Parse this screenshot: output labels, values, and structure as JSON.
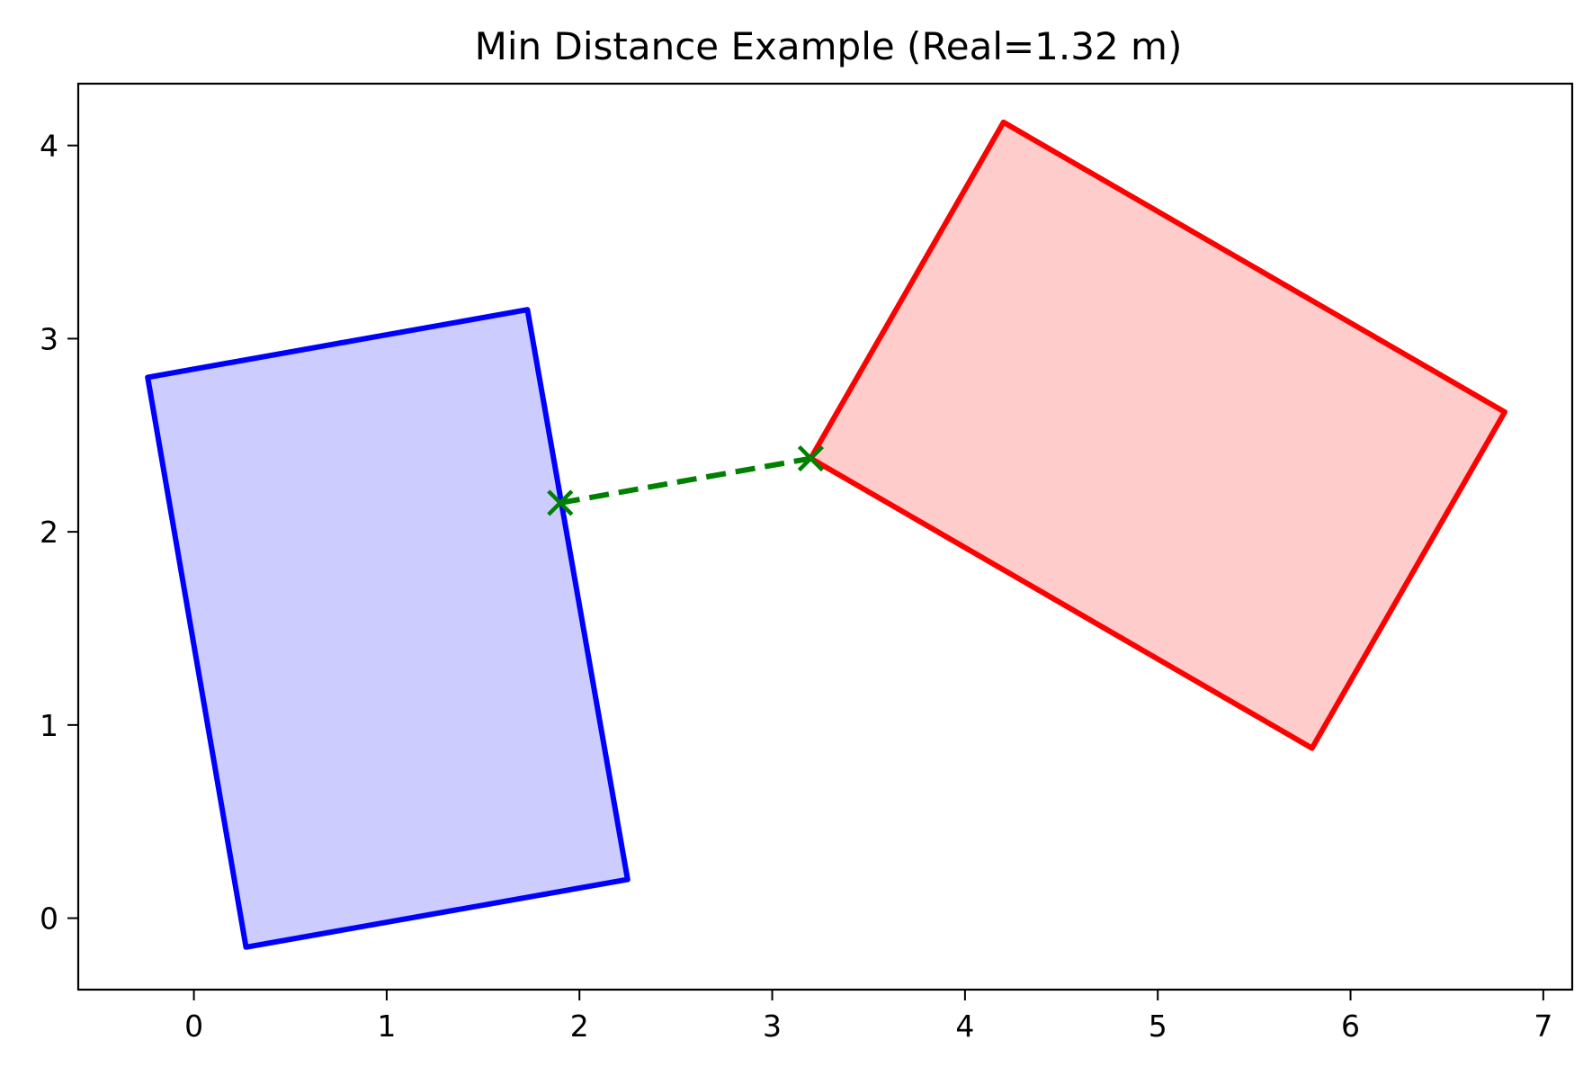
{
  "chart_data": {
    "type": "polygon-plot",
    "title": "Min Distance Example (Real=1.32 m)",
    "xlabel": "",
    "ylabel": "",
    "xlim": [
      -0.6,
      7.15
    ],
    "ylim": [
      -0.37,
      4.32
    ],
    "xticks": [
      0,
      1,
      2,
      3,
      4,
      5,
      6,
      7
    ],
    "yticks": [
      0,
      1,
      2,
      3,
      4
    ],
    "grid": false,
    "polygons": [
      {
        "id": "blue-polygon",
        "edge_color": "#0000ff",
        "fill_color": "#ccccff",
        "vertices": [
          [
            -0.24,
            2.8
          ],
          [
            1.73,
            3.15
          ],
          [
            2.25,
            0.2
          ],
          [
            0.27,
            -0.15
          ]
        ]
      },
      {
        "id": "red-polygon",
        "edge_color": "#ff0000",
        "fill_color": "#ffcccc",
        "vertices": [
          [
            4.2,
            4.12
          ],
          [
            6.8,
            2.62
          ],
          [
            5.8,
            0.88
          ],
          [
            3.2,
            2.38
          ]
        ]
      }
    ],
    "min_distance_segment": {
      "color": "#008000",
      "from": [
        1.9,
        2.15
      ],
      "to": [
        3.2,
        2.38
      ],
      "marker": "x"
    }
  }
}
